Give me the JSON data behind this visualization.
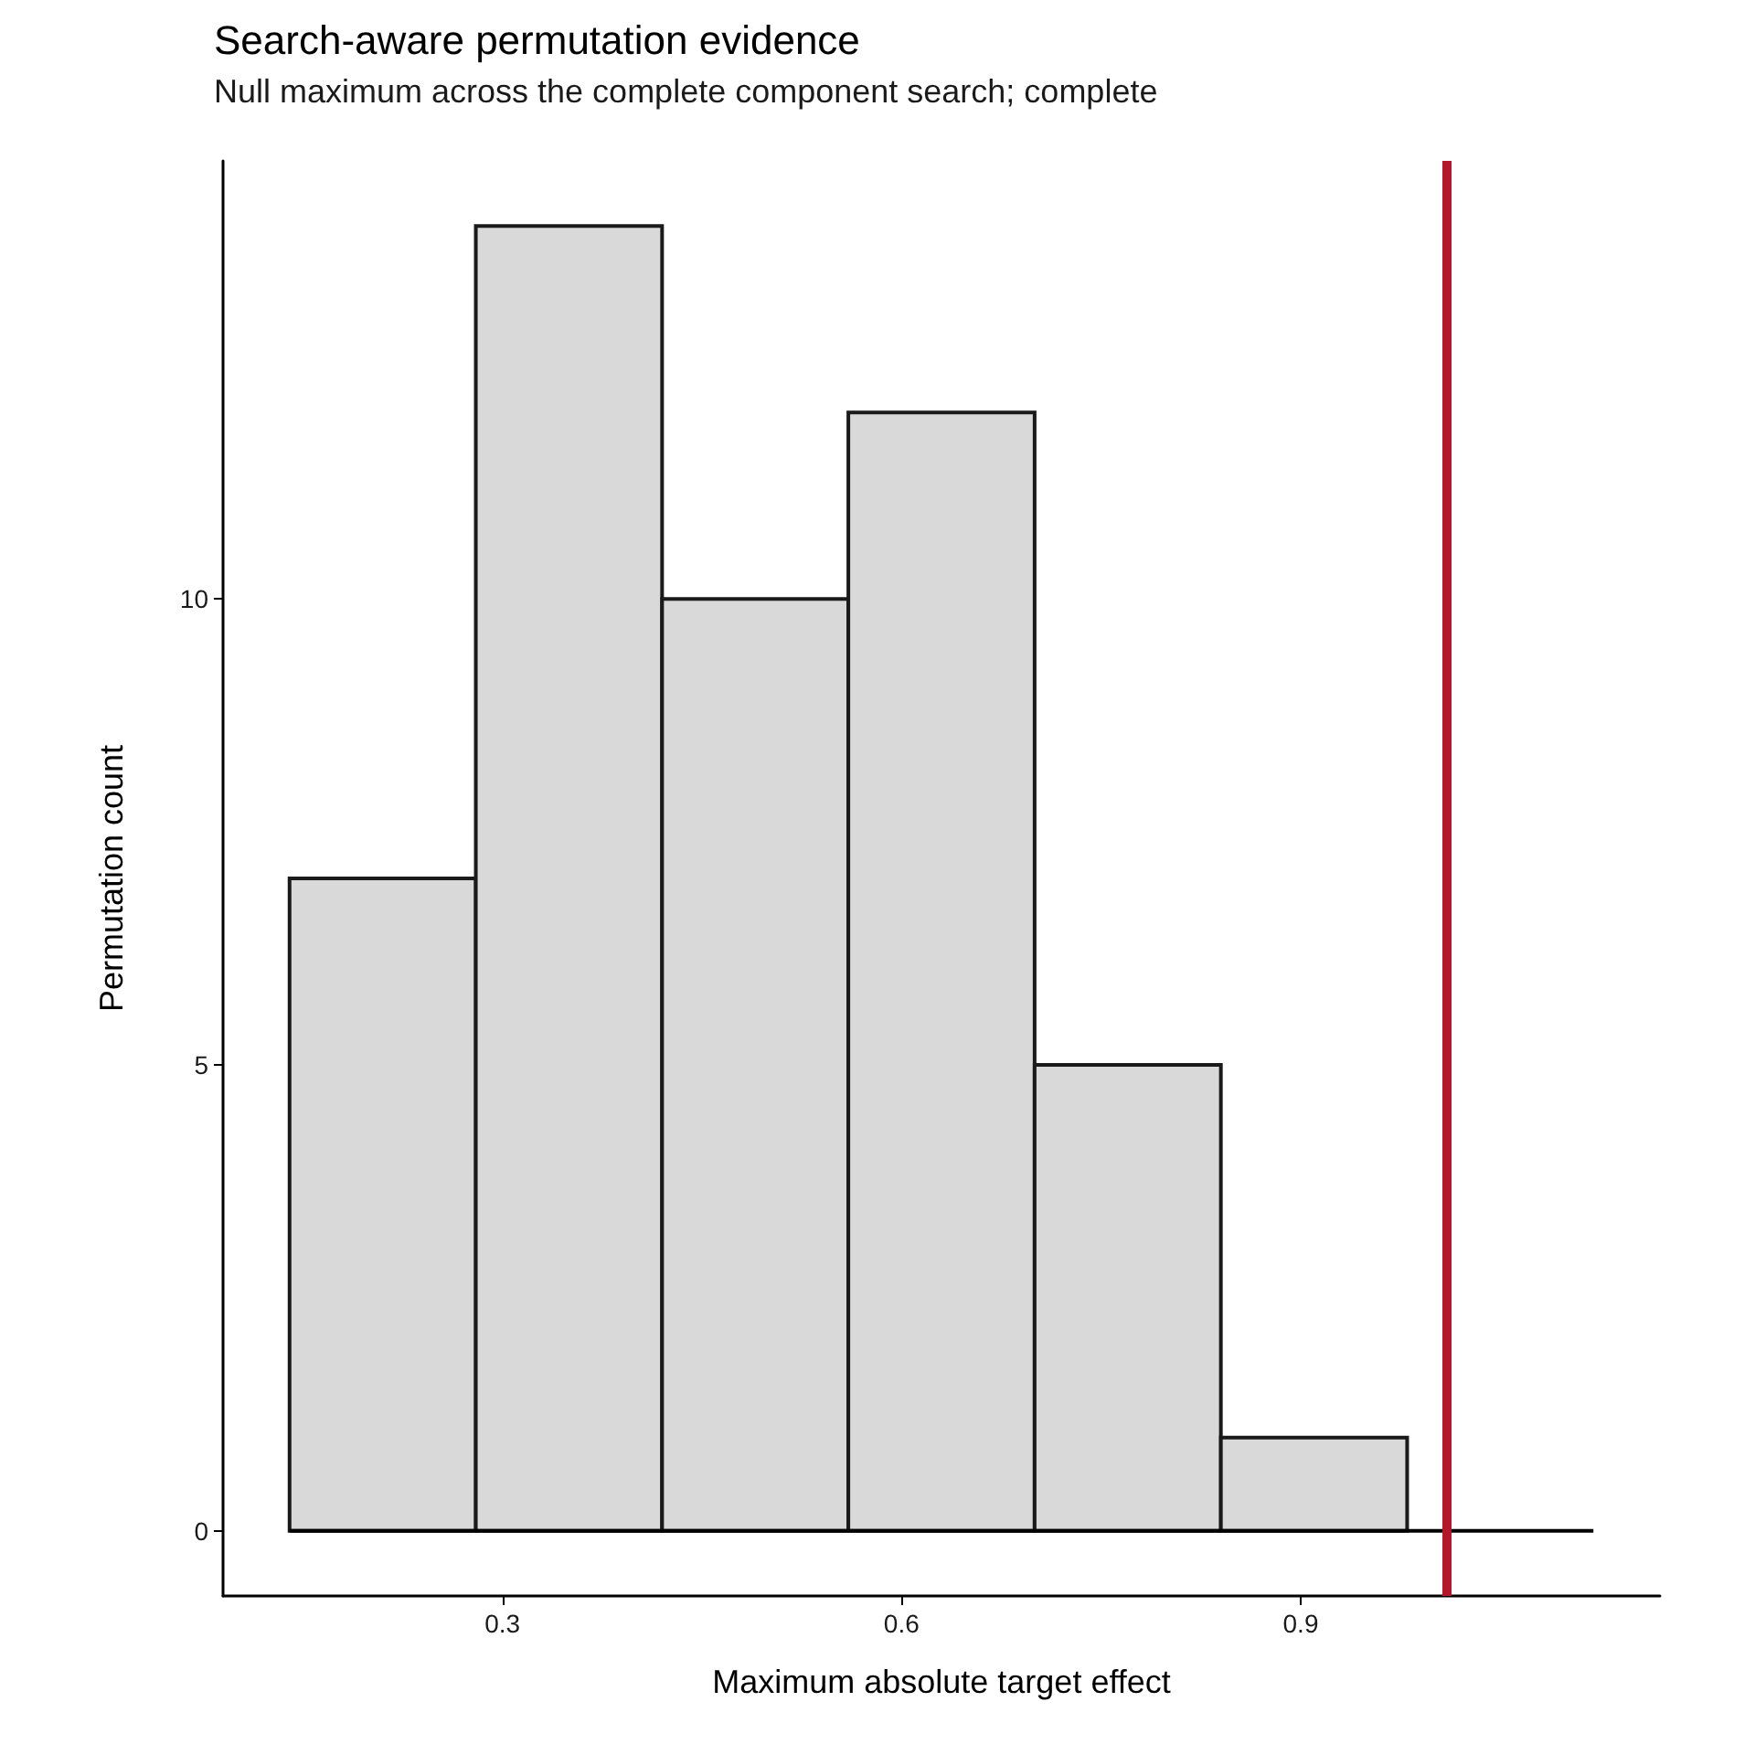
{
  "chart_data": {
    "type": "histogram",
    "title": "Search-aware permutation evidence",
    "subtitle": "Null maximum across the complete component search; complete",
    "xlabel": "Maximum absolute target effect",
    "ylabel": "Permutation count",
    "bins": [
      0.14,
      0.28,
      0.42,
      0.56,
      0.7,
      0.84,
      0.98
    ],
    "values": [
      7,
      14,
      10,
      12,
      5,
      1
    ],
    "color": "#d9d9d9",
    "series": [
      {
        "type": "line",
        "x": [
          0.14,
          1.12
        ],
        "values": [
          0,
          0
        ],
        "color": "#000000"
      }
    ],
    "xlim": [
      0.09,
      1.17
    ],
    "xticks": [
      0.3,
      0.6,
      0.9
    ],
    "ylim": [
      -0.7,
      14.7
    ],
    "yticks": [
      0,
      5,
      10
    ],
    "ref_lines": [
      {
        "axis": "x",
        "value": 1.01,
        "color": "#b2182b"
      }
    ],
    "grid": false,
    "marker": "none",
    "line_style": "solid"
  }
}
